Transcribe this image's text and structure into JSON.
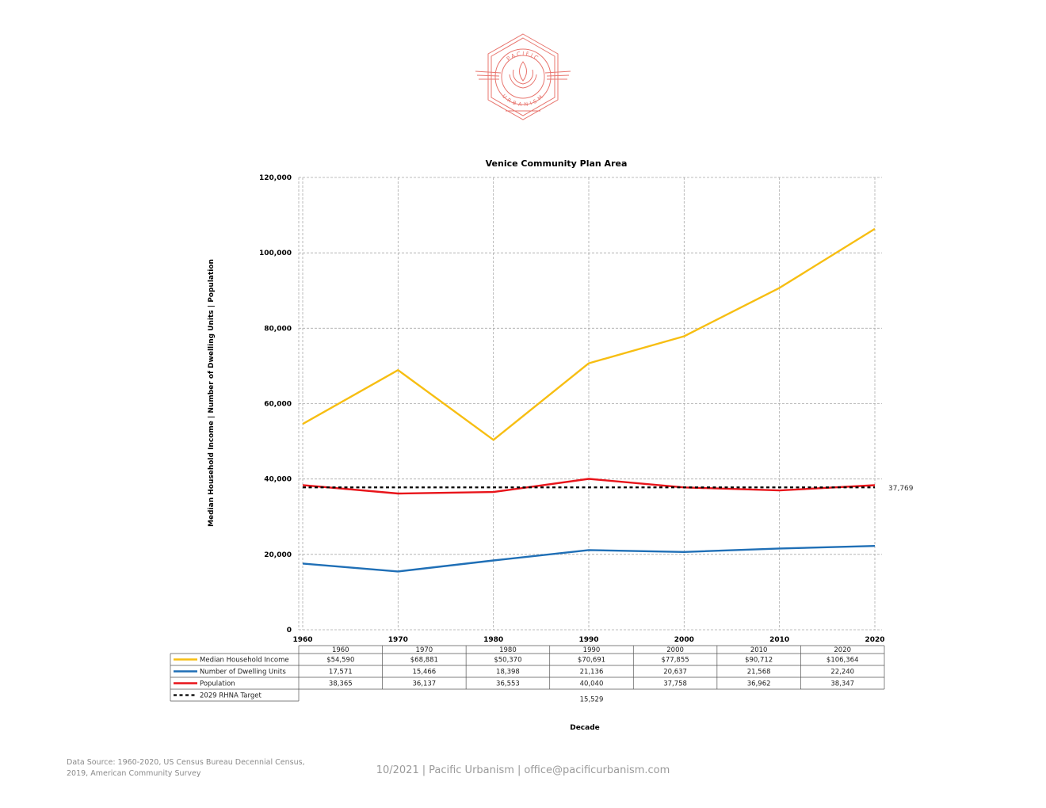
{
  "logo": {
    "top_text": "PACIFIC",
    "bottom_text": "URBANISM",
    "color": "#e8756e"
  },
  "chart_data": {
    "type": "line",
    "title": "Venice Community Plan Area",
    "xlabel": "Decade",
    "ylabel": "Median Household Income | Number of Dwelling Units | Population",
    "categories": [
      "1960",
      "1970",
      "1980",
      "1990",
      "2000",
      "2010",
      "2020"
    ],
    "x_tick_labels": [
      "1960",
      "1970",
      "1980",
      "1990",
      "2000",
      "2010",
      "2020"
    ],
    "y_tick_labels": [
      "0",
      "20,000",
      "40,000",
      "60,000",
      "80,000",
      "100,000",
      "120,000"
    ],
    "ylim": [
      0,
      120000
    ],
    "grid": true,
    "series": [
      {
        "name": "Median Household Income",
        "color": "#f7be12",
        "values": [
          54590,
          68881,
          50370,
          70691,
          77855,
          90712,
          106364
        ],
        "table": [
          "$54,590",
          "$68,881",
          "$50,370",
          "$70,691",
          "$77,855",
          "$90,712",
          "$106,364"
        ]
      },
      {
        "name": "Number of Dwelling Units",
        "color": "#1f6fb6",
        "values": [
          17571,
          15466,
          18398,
          21136,
          20637,
          21568,
          22240
        ],
        "table": [
          "17,571",
          "15,466",
          "18,398",
          "21,136",
          "20,637",
          "21,568",
          "22,240"
        ]
      },
      {
        "name": "Population",
        "color": "#e8141a",
        "values": [
          38365,
          36137,
          36553,
          40040,
          37758,
          36962,
          38347
        ],
        "table": [
          "38,365",
          "36,137",
          "36,553",
          "40,040",
          "37,758",
          "36,962",
          "38,347"
        ]
      }
    ],
    "target": {
      "name": "2029 RHNA Target",
      "value": 37769,
      "end_label": "37,769",
      "table_value": "15,529",
      "color": "#000000"
    },
    "table_headers": [
      "1960",
      "1970",
      "1980",
      "1990",
      "2000",
      "2010",
      "2020"
    ]
  },
  "footer": {
    "source_line1": "Data Source: 1960-2020, US Census Bureau Decennial Census,",
    "source_line2": "2019, American Community Survey",
    "date": "10/2021",
    "org": "Pacific Urbanism",
    "email": "office@pacificurbanism.com",
    "sep": "|"
  }
}
